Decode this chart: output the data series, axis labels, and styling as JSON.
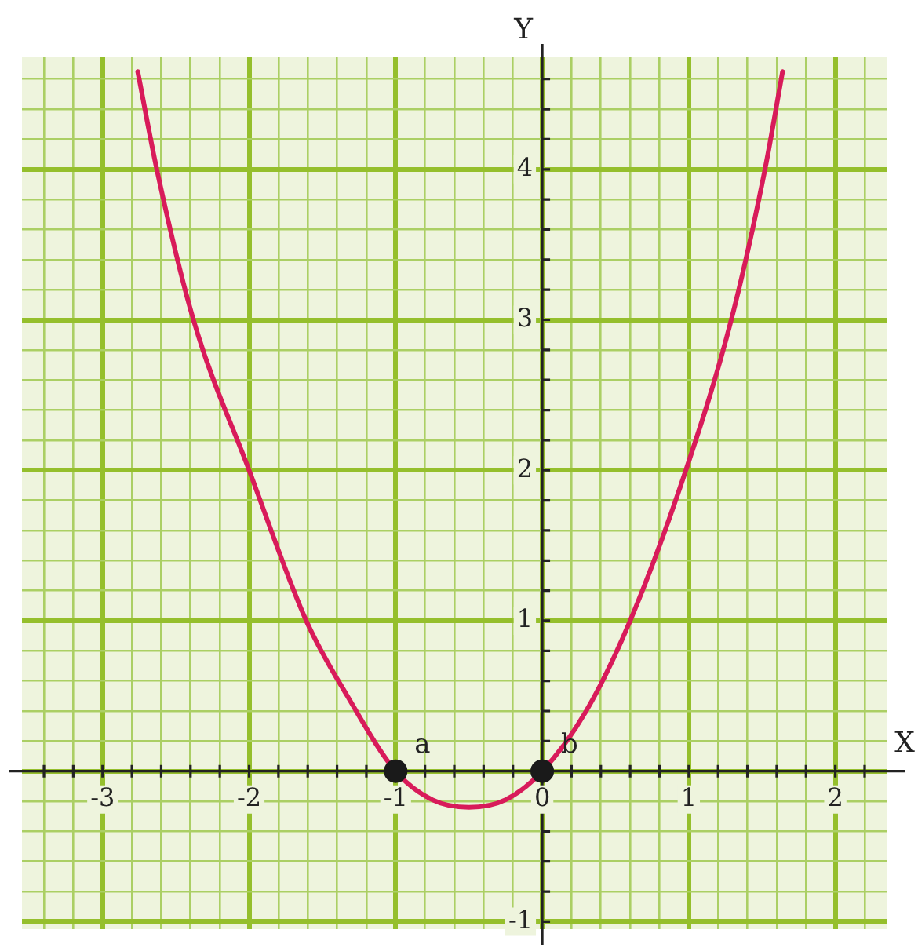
{
  "chart_data": {
    "type": "line",
    "xlabel": "X",
    "ylabel": "Y",
    "xlim": [
      -3.55,
      2.35
    ],
    "ylim": [
      -1.05,
      4.75
    ],
    "grid": true,
    "line_style": "solid",
    "marker": "none",
    "xticks": [
      {
        "value": -3.4,
        "label": null
      },
      {
        "value": -3.2,
        "label": null
      },
      -3,
      {
        "value": -2.8,
        "label": null
      },
      {
        "value": -2.6,
        "label": null
      },
      {
        "value": -2.4,
        "label": null
      },
      {
        "value": -2.2,
        "label": null
      },
      -2,
      {
        "value": -1.8,
        "label": null
      },
      {
        "value": -1.6,
        "label": null
      },
      {
        "value": -1.4,
        "label": null
      },
      {
        "value": -1.2,
        "label": null
      },
      -1,
      {
        "value": -0.8,
        "label": null
      },
      {
        "value": -0.6,
        "label": null
      },
      {
        "value": -0.4,
        "label": null
      },
      {
        "value": -0.2,
        "label": null
      },
      0,
      {
        "value": 0.2,
        "label": null
      },
      {
        "value": 0.4,
        "label": null
      },
      {
        "value": 0.6,
        "label": null
      },
      {
        "value": 0.8,
        "label": null
      },
      1,
      {
        "value": 1.2,
        "label": null
      },
      {
        "value": 1.4,
        "label": null
      },
      {
        "value": 1.6,
        "label": null
      },
      {
        "value": 1.8,
        "label": null
      },
      2,
      {
        "value": 2.2,
        "label": null
      }
    ],
    "yticks": [
      -1,
      {
        "value": -0.8,
        "label": null
      },
      {
        "value": -0.6,
        "label": null
      },
      {
        "value": -0.4,
        "label": null
      },
      {
        "value": -0.2,
        "label": null
      },
      {
        "value": 0,
        "label": null
      },
      {
        "value": 0.2,
        "label": null
      },
      {
        "value": 0.4,
        "label": null
      },
      {
        "value": 0.6,
        "label": null
      },
      {
        "value": 0.8,
        "label": null
      },
      1,
      {
        "value": 1.2,
        "label": null
      },
      {
        "value": 1.4,
        "label": null
      },
      {
        "value": 1.6,
        "label": null
      },
      {
        "value": 1.8,
        "label": null
      },
      2,
      {
        "value": 2.2,
        "label": null
      },
      {
        "value": 2.4,
        "label": null
      },
      {
        "value": 2.6,
        "label": null
      },
      {
        "value": 2.8,
        "label": null
      },
      3,
      {
        "value": 3.2,
        "label": null
      },
      {
        "value": 3.4,
        "label": null
      },
      {
        "value": 3.6,
        "label": null
      },
      {
        "value": 3.8,
        "label": null
      },
      4,
      {
        "value": 4.2,
        "label": null
      },
      {
        "value": 4.4,
        "label": null
      },
      {
        "value": 4.6,
        "label": null
      }
    ],
    "series": [
      {
        "color": "#d81b5a",
        "x": [
          -2.76,
          -2.63,
          -2.38,
          -2.0,
          -1.61,
          -1.33,
          -1.0,
          -0.75,
          -0.5,
          -0.25,
          0,
          0.3,
          0.6,
          0.98,
          1.29,
          1.52,
          1.64
        ],
        "values": [
          4.65,
          4,
          3,
          2,
          1,
          0.5,
          0,
          -0.19,
          -0.24,
          -0.19,
          0,
          0.4,
          1,
          2,
          3,
          4,
          4.65
        ]
      },
      {
        "type": "scatter",
        "color": "#1a1a1a",
        "marker": "circle",
        "x": [
          -1,
          0
        ],
        "values": [
          0,
          0
        ]
      }
    ],
    "annotations": [
      {
        "text": "a",
        "x": -1,
        "y": 0
      },
      {
        "text": "b",
        "x": 0,
        "y": 0
      }
    ]
  }
}
